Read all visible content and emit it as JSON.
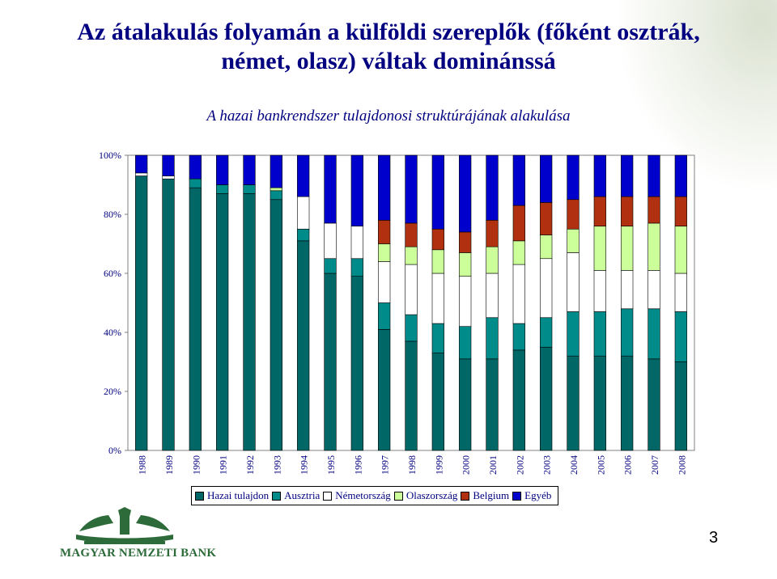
{
  "slide": {
    "title_line1": "Az átalakulás folyamán a külföldi szereplők (főként osztrák,",
    "title_line2": "német, olasz) váltak dominánssá",
    "page_number": "3"
  },
  "logo": {
    "text": "MAGYAR NEMZETI BANK"
  },
  "colors": {
    "title": "#000080",
    "logo_green": "#2e6b3a"
  },
  "chart_data": {
    "type": "bar",
    "stacked": true,
    "title": "A hazai bankrendszer tulajdonosi struktúrájának alakulása",
    "xlabel": "",
    "ylabel": "",
    "ylim": [
      0,
      100
    ],
    "y_ticks": [
      "0%",
      "20%",
      "40%",
      "60%",
      "80%",
      "100%"
    ],
    "grid": false,
    "legend_position": "bottom",
    "categories": [
      "1988",
      "1989",
      "1990",
      "1991",
      "1992",
      "1993",
      "1994",
      "1995",
      "1996",
      "1997",
      "1998",
      "1999",
      "2000",
      "2001",
      "2002",
      "2003",
      "2004",
      "2005",
      "2006",
      "2007",
      "2008"
    ],
    "series": [
      {
        "name": "Hazai tulajdon",
        "color": "#006666",
        "values": [
          93,
          92,
          89,
          87,
          87,
          85,
          71,
          60,
          59,
          41,
          37,
          33,
          31,
          31,
          34,
          35,
          32,
          32,
          32,
          31,
          30
        ]
      },
      {
        "name": "Ausztria",
        "color": "#008b8b",
        "values": [
          0,
          0,
          3,
          3,
          3,
          3,
          4,
          5,
          6,
          9,
          9,
          10,
          11,
          14,
          9,
          10,
          15,
          15,
          16,
          17,
          17
        ]
      },
      {
        "name": "Németország",
        "color": "#ffffff",
        "values": [
          1,
          1,
          0,
          0,
          0,
          0,
          11,
          12,
          11,
          14,
          17,
          17,
          17,
          15,
          20,
          20,
          20,
          14,
          13,
          13,
          13
        ]
      },
      {
        "name": "Olaszország",
        "color": "#ccff99",
        "values": [
          0,
          0,
          0,
          0,
          0,
          1,
          0,
          0,
          0,
          6,
          6,
          8,
          8,
          9,
          8,
          8,
          8,
          15,
          15,
          16,
          16
        ]
      },
      {
        "name": "Belgium",
        "color": "#b03010",
        "values": [
          0,
          0,
          0,
          0,
          0,
          0,
          0,
          0,
          0,
          8,
          8,
          7,
          7,
          9,
          12,
          11,
          10,
          10,
          10,
          9,
          10
        ]
      },
      {
        "name": "Egyéb",
        "color": "#0000cc",
        "values": [
          6,
          7,
          8,
          10,
          10,
          11,
          14,
          23,
          24,
          22,
          23,
          25,
          26,
          22,
          17,
          16,
          15,
          14,
          14,
          14,
          14
        ]
      }
    ]
  }
}
